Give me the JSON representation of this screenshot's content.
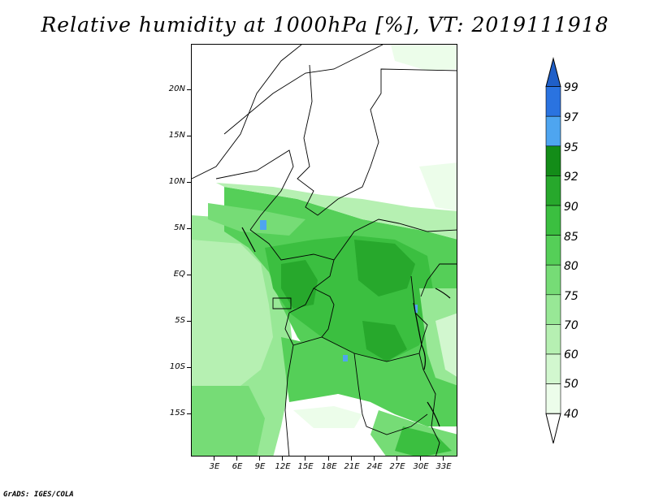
{
  "title": "Relative humidity at 1000hPa [%], VT: 2019111918",
  "credit": "GrADS: IGES/COLA",
  "map": {
    "latitude_labels": [
      "20N",
      "15N",
      "10N",
      "5N",
      "EQ",
      "5S",
      "10S",
      "15S"
    ],
    "longitude_labels": [
      "3E",
      "6E",
      "9E",
      "12E",
      "15E",
      "18E",
      "21E",
      "24E",
      "27E",
      "30E",
      "33E"
    ],
    "lat_range": [
      -20,
      25
    ],
    "lon_range": [
      0,
      35
    ]
  },
  "colorbar": {
    "labels": [
      "99",
      "97",
      "95",
      "92",
      "90",
      "85",
      "80",
      "75",
      "70",
      "60",
      "50",
      "40"
    ],
    "colors": [
      "#1f5fc8",
      "#2a73e0",
      "#4ea5f0",
      "#138c18",
      "#27a82c",
      "#3bbf40",
      "#55cf58",
      "#76dc76",
      "#98e896",
      "#b6f0b2",
      "#d2f7cf",
      "#ecfdea",
      "#ffffff"
    ]
  },
  "colors": {
    "background": "#ffffff",
    "border": "#000000"
  }
}
